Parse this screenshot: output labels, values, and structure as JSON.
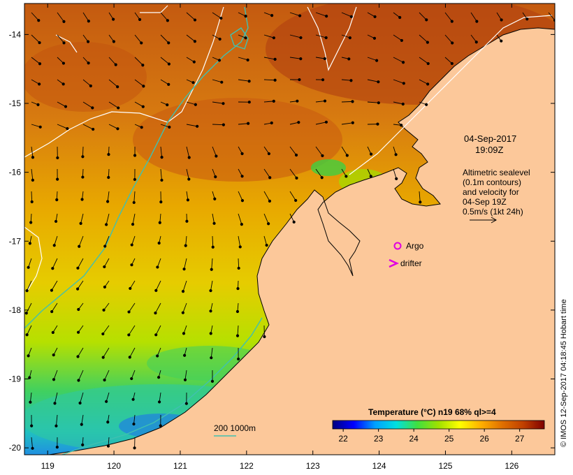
{
  "date": {
    "line1": "04-Sep-2017",
    "line2": "19:09Z"
  },
  "altimetry_note": [
    "Altimetric sealevel",
    "(0.1m contours)",
    "and velocity for",
    "04-Sep 19Z",
    "0.5m/s (1kt 24h)"
  ],
  "legend": {
    "argo": "Argo",
    "drifter": "drifter",
    "argo_color": "#e000e0",
    "drifter_color": "#e000e0"
  },
  "depth_scale": "200  1000m",
  "colorbar": {
    "title": "Temperature (°C) n19 68% ql>=4",
    "ticks": [
      "22",
      "23",
      "24",
      "25",
      "26",
      "27"
    ],
    "min": 21.7,
    "max": 27.7,
    "stops": [
      "#00007f",
      "#0000ff",
      "#00a0ff",
      "#00e0e0",
      "#40e040",
      "#a0e000",
      "#ffff00",
      "#ffb000",
      "#e07000",
      "#c04000",
      "#800000"
    ]
  },
  "axes": {
    "x_ticks": [
      "119",
      "120",
      "121",
      "122",
      "123",
      "124",
      "125",
      "126"
    ],
    "y_ticks": [
      "-14",
      "-15",
      "-16",
      "-17",
      "-18",
      "-19",
      "-20"
    ],
    "lon_range": [
      118.65,
      126.65
    ],
    "lat_range": [
      -20.1,
      -13.55
    ]
  },
  "credit": "© IMOS 12-Sep-2017 04:18:45 Hobart time",
  "colors": {
    "land": "#fcc89a",
    "contour": "#ffffff",
    "isobath": "#40c0b0"
  }
}
